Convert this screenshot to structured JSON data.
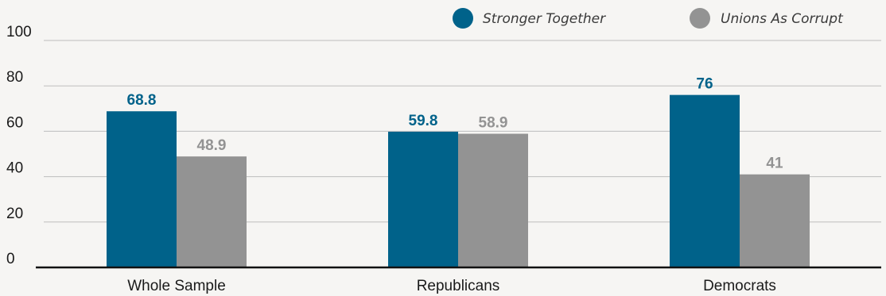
{
  "chart_data": {
    "type": "bar",
    "categories": [
      "Whole Sample",
      "Republicans",
      "Democrats"
    ],
    "series": [
      {
        "name": "Stronger Together",
        "color": "#00628a",
        "values": [
          68.8,
          59.8,
          76
        ]
      },
      {
        "name": "Unions As Corrupt",
        "color": "#939393",
        "values": [
          48.9,
          58.9,
          41
        ]
      }
    ],
    "value_labels": [
      [
        "68.8",
        "59.8",
        "76"
      ],
      [
        "48.9",
        "58.9",
        "41"
      ]
    ],
    "yticks": [
      "0",
      "20",
      "40",
      "60",
      "80",
      "100"
    ],
    "ylim": [
      0,
      100
    ],
    "grid": true,
    "legend_position": "top-right",
    "title": "",
    "xlabel": "",
    "ylabel": ""
  }
}
